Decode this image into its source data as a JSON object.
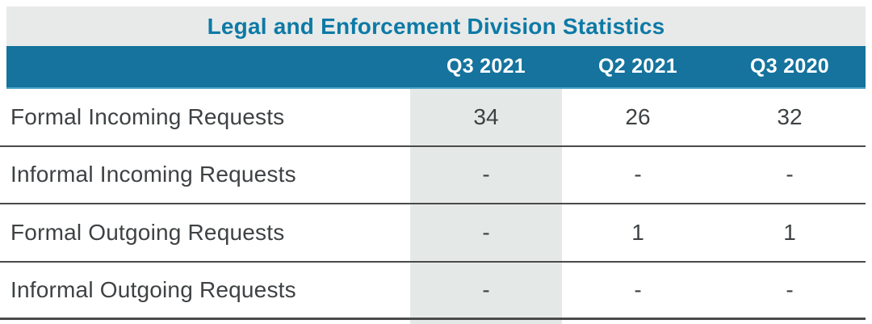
{
  "chart_data": {
    "type": "table",
    "title": "Legal and Enforcement Division Statistics",
    "columns": [
      "Q3 2021",
      "Q2 2021",
      "Q3 2020"
    ],
    "highlighted_column": "Q3 2021",
    "rows": [
      {
        "label": "Formal Incoming Requests",
        "values": [
          "34",
          "26",
          "32"
        ]
      },
      {
        "label": "Informal Incoming Requests",
        "values": [
          "-",
          "-",
          "-"
        ]
      },
      {
        "label": "Formal Outgoing Requests",
        "values": [
          "-",
          "1",
          "1"
        ]
      },
      {
        "label": "Informal Outgoing Requests",
        "values": [
          "-",
          "-",
          "-"
        ]
      }
    ]
  },
  "colors": {
    "header_bg": "#15739d",
    "header_text": "#ffffff",
    "header_underline": "#4da3c6",
    "title_text": "#0d7aa6",
    "title_band_bg": "#e8eae9",
    "highlight_column_bg": "#e4e9e7",
    "body_text": "#3f4244",
    "separator": "#4a4a4a",
    "page_bg": "#ffffff"
  }
}
